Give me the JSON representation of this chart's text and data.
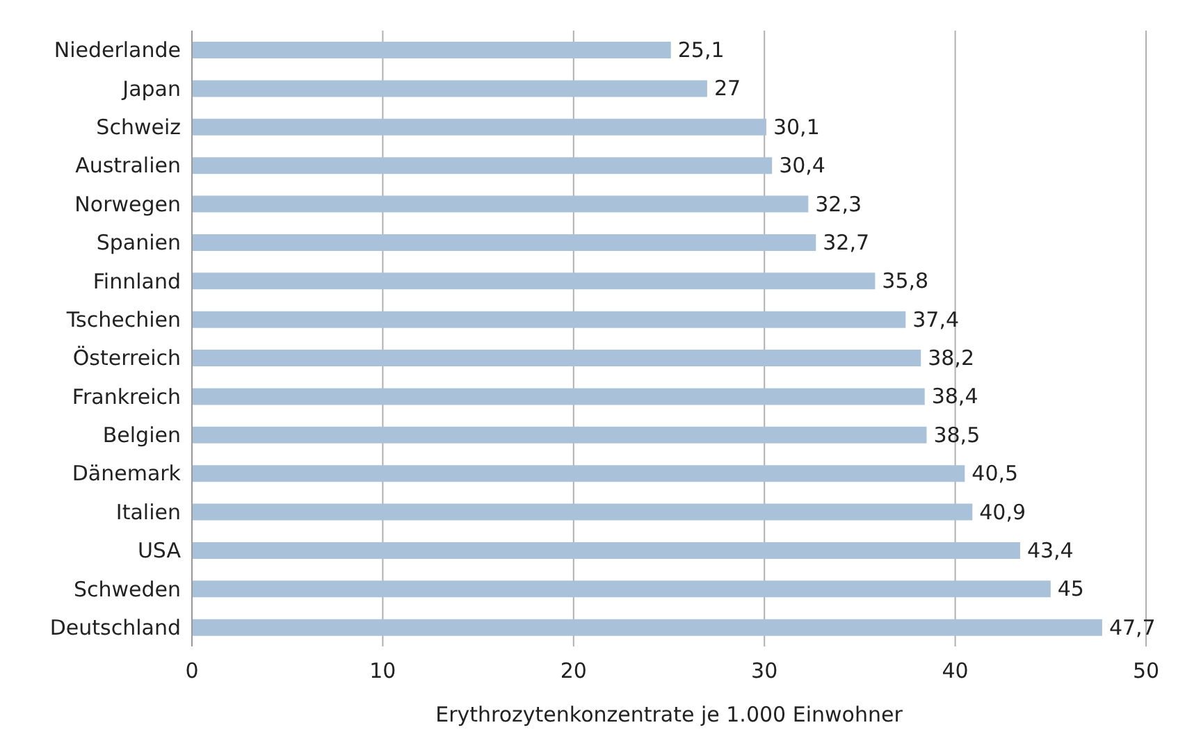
{
  "chart_data": {
    "type": "bar",
    "orientation": "horizontal",
    "xlabel": "Erythrozytenkonzentrate je 1.000 Einwohner",
    "categories": [
      "Niederlande",
      "Japan",
      "Schweiz",
      "Australien",
      "Norwegen",
      "Spanien",
      "Finnland",
      "Tschechien",
      "Österreich",
      "Frankreich",
      "Belgien",
      "Dänemark",
      "Italien",
      "USA",
      "Schweden",
      "Deutschland"
    ],
    "values": [
      25.1,
      27,
      30.1,
      30.4,
      32.3,
      32.7,
      35.8,
      37.4,
      38.2,
      38.4,
      38.5,
      40.5,
      40.9,
      43.4,
      45,
      47.7
    ],
    "value_labels": [
      "25,1",
      "27",
      "30,1",
      "30,4",
      "32,3",
      "32,7",
      "35,8",
      "37,4",
      "38,2",
      "38,4",
      "38,5",
      "40,5",
      "40,9",
      "43,4",
      "45",
      "47,7"
    ],
    "color": "#a9c1d9",
    "xlim": [
      0,
      50
    ],
    "xticks": [
      0,
      10,
      20,
      30,
      40,
      50
    ],
    "grid": "x",
    "legend": false
  }
}
